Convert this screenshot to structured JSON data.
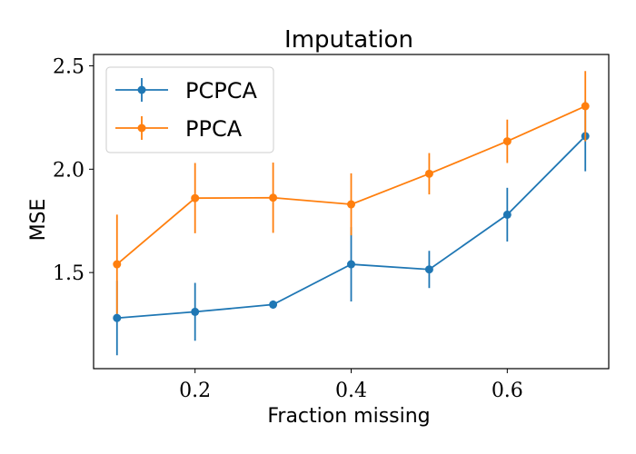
{
  "chart_data": {
    "type": "line",
    "title": "Imputation",
    "xlabel": "Fraction missing",
    "ylabel": "MSE",
    "xlim": [
      0.07,
      0.73
    ],
    "ylim": [
      1.035,
      2.555
    ],
    "xticks": [
      0.2,
      0.4,
      0.6
    ],
    "xtick_labels": [
      "0.2",
      "0.4",
      "0.6"
    ],
    "yticks": [
      1.5,
      2.0,
      2.5
    ],
    "ytick_labels": [
      "1.5",
      "2.0",
      "2.5"
    ],
    "x": [
      0.1,
      0.2,
      0.3,
      0.4,
      0.5,
      0.6,
      0.7
    ],
    "legend_position": "upper-left",
    "series": [
      {
        "name": "PCPCA",
        "color": "#1f77b4",
        "values": [
          1.28,
          1.31,
          1.345,
          1.54,
          1.515,
          1.78,
          2.16
        ],
        "error": [
          0.18,
          0.14,
          0.02,
          0.18,
          0.09,
          0.13,
          0.17
        ]
      },
      {
        "name": "PPCA",
        "color": "#ff7f0e",
        "values": [
          1.54,
          1.86,
          1.862,
          1.83,
          1.978,
          2.135,
          2.305
        ],
        "error": [
          0.24,
          0.17,
          0.17,
          0.15,
          0.1,
          0.105,
          0.17
        ]
      }
    ]
  }
}
